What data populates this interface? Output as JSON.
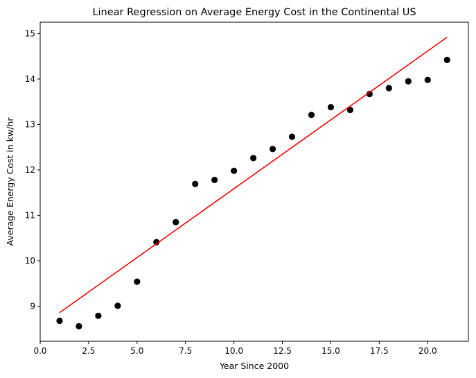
{
  "chart_data": {
    "type": "scatter",
    "title": "Linear Regression on Average Energy Cost in the Continental US",
    "xlabel": "Year Since 2000",
    "ylabel": "Average Energy Cost in kw/hr",
    "xlim": [
      0,
      22.1
    ],
    "ylim": [
      8.23,
      15.25
    ],
    "x_ticks": [
      0,
      2.5,
      5,
      7.5,
      10,
      12.5,
      15,
      17.5,
      20
    ],
    "x_tick_labels": [
      "0.0",
      "2.5",
      "5.0",
      "7.5",
      "10.0",
      "12.5",
      "15.0",
      "17.5",
      "20.0"
    ],
    "y_ticks": [
      9,
      10,
      11,
      12,
      13,
      14,
      15
    ],
    "y_tick_labels": [
      "9",
      "10",
      "11",
      "12",
      "13",
      "14",
      "15"
    ],
    "grid": false,
    "series": [
      {
        "kind": "scatter",
        "color": "#000000",
        "points": [
          {
            "x": 1,
            "y": 8.68
          },
          {
            "x": 2,
            "y": 8.56
          },
          {
            "x": 3,
            "y": 8.79
          },
          {
            "x": 4,
            "y": 9.01
          },
          {
            "x": 5,
            "y": 9.54
          },
          {
            "x": 6,
            "y": 10.41
          },
          {
            "x": 7,
            "y": 10.85
          },
          {
            "x": 8,
            "y": 11.69
          },
          {
            "x": 9,
            "y": 11.78
          },
          {
            "x": 10,
            "y": 11.98
          },
          {
            "x": 11,
            "y": 12.26
          },
          {
            "x": 12,
            "y": 12.46
          },
          {
            "x": 13,
            "y": 12.73
          },
          {
            "x": 14,
            "y": 13.21
          },
          {
            "x": 15,
            "y": 13.38
          },
          {
            "x": 16,
            "y": 13.32
          },
          {
            "x": 17,
            "y": 13.67
          },
          {
            "x": 18,
            "y": 13.8
          },
          {
            "x": 19,
            "y": 13.95
          },
          {
            "x": 20,
            "y": 13.98
          },
          {
            "x": 21,
            "y": 14.42
          }
        ]
      },
      {
        "kind": "line",
        "color": "#ff0000",
        "points": [
          {
            "x": 1,
            "y": 8.86
          },
          {
            "x": 21,
            "y": 14.92
          }
        ]
      }
    ]
  }
}
